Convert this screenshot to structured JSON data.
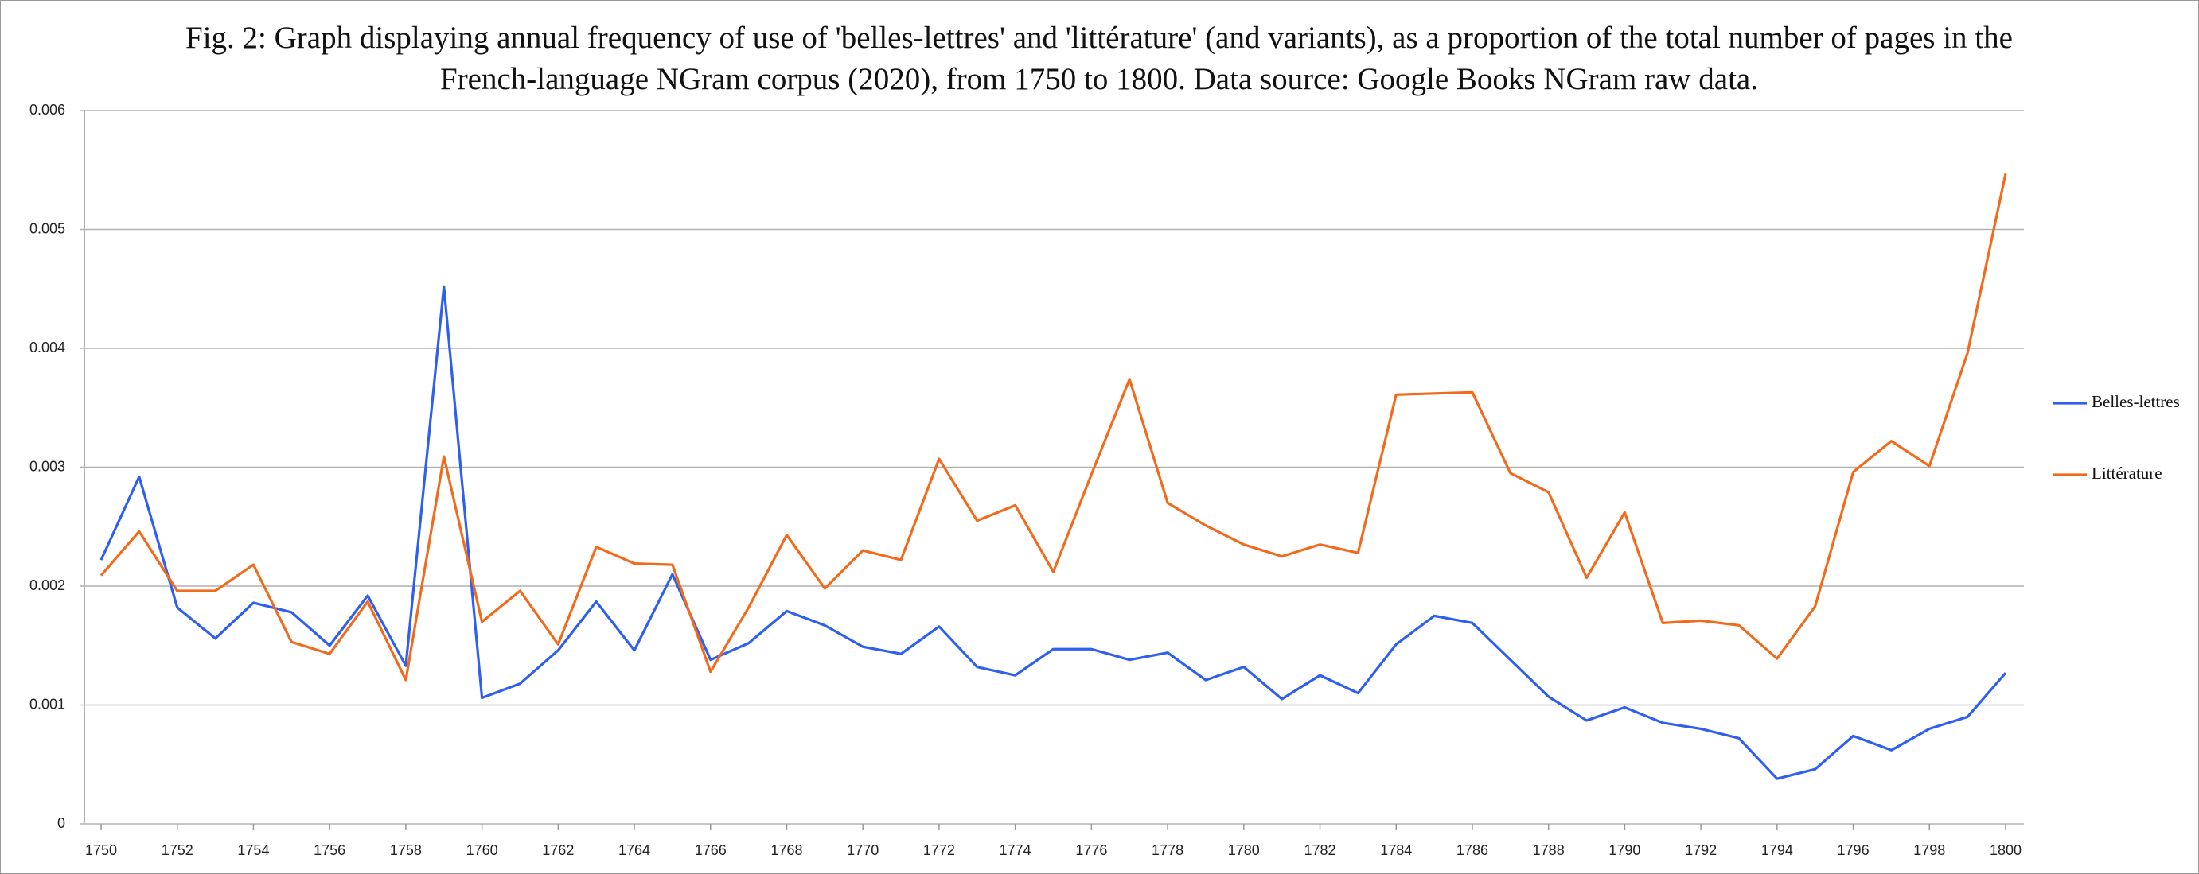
{
  "chart_data": {
    "type": "line",
    "title": "Fig. 2: Graph displaying annual frequency of use of 'belles-lettres' and 'littérature' (and variants), as a proportion of the total number of pages in the French-language NGram corpus (2020), from 1750 to 1800. Data source: Google Books NGram raw data.",
    "categories": [
      "1750",
      null,
      "1752",
      null,
      "1754",
      null,
      "1756",
      null,
      "1758",
      null,
      "1760",
      null,
      "1762",
      null,
      "1764",
      null,
      "1766",
      null,
      "1768",
      null,
      "1770",
      null,
      "1772",
      null,
      "1774",
      null,
      "1776",
      null,
      "1778",
      null,
      "1780",
      null,
      "1782",
      null,
      "1784",
      null,
      "1786",
      null,
      "1788",
      null,
      "1790",
      null,
      "1792",
      null,
      "1794",
      null,
      "1796",
      null,
      "1798",
      null,
      "1800"
    ],
    "series": [
      {
        "name": "Belles-lettres",
        "color": "#2f5fef",
        "values": [
          0.00222,
          0.00292,
          0.00182,
          0.00156,
          0.00186,
          0.00178,
          0.0015,
          0.00192,
          0.00133,
          0.00452,
          0.00106,
          0.00118,
          0.00146,
          0.00187,
          0.00146,
          0.0021,
          0.00138,
          0.00152,
          0.00179,
          0.00167,
          0.00149,
          0.00143,
          0.00166,
          0.00132,
          0.00125,
          0.00147,
          0.00147,
          0.00138,
          0.00144,
          0.00121,
          0.00132,
          0.00105,
          0.00125,
          0.0011,
          0.00151,
          0.00175,
          0.00169,
          0.00138,
          0.00107,
          0.00087,
          0.00098,
          0.00085,
          0.0008,
          0.00072,
          0.00038,
          0.00046,
          0.00074,
          0.00062,
          0.0008,
          0.0009,
          0.00127
        ]
      },
      {
        "name": "Littérature",
        "color": "#f26a1c",
        "values": [
          0.00209,
          0.00246,
          0.00196,
          0.00196,
          0.00218,
          0.00153,
          0.00143,
          0.00187,
          0.00121,
          0.00309,
          0.0017,
          0.00196,
          0.00151,
          0.00233,
          0.00219,
          0.00218,
          0.00128,
          0.00182,
          0.00243,
          0.00198,
          0.0023,
          0.00222,
          0.00307,
          0.00255,
          0.00268,
          0.00212,
          0.00294,
          0.00374,
          0.0027,
          0.00251,
          0.00235,
          0.00225,
          0.00235,
          0.00228,
          0.00361,
          0.00362,
          0.00363,
          0.00295,
          0.00279,
          0.00207,
          0.00262,
          0.00169,
          0.00171,
          0.00167,
          0.00139,
          0.00183,
          0.00296,
          0.00322,
          0.00301,
          0.00396,
          0.00547
        ]
      }
    ],
    "ylim": [
      0,
      0.006
    ],
    "yticks": [
      0,
      0.001,
      0.002,
      0.003,
      0.004,
      0.005,
      0.006
    ],
    "grid": true,
    "legend": "right"
  }
}
